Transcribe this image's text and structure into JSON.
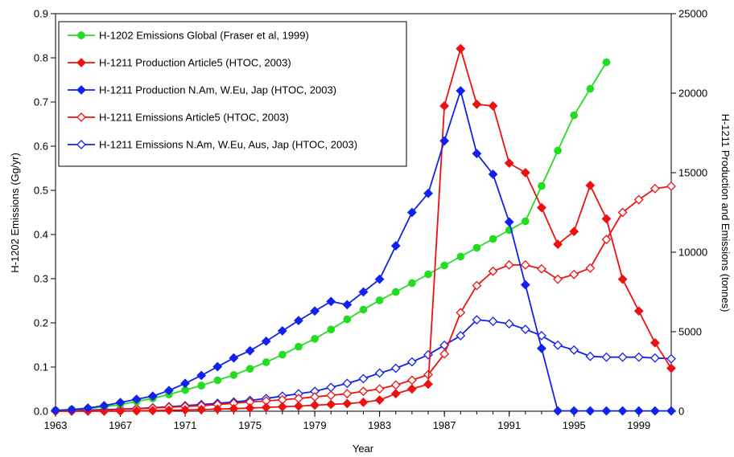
{
  "chart_data": {
    "type": "line",
    "xlabel": "Year",
    "ylabel_left": "H-1202 Emissions (Gg/yr)",
    "ylabel_right": "H-1211 Production and Emissions (tonnes)",
    "xlim": [
      1963,
      2001
    ],
    "xticks": [
      "1963",
      "1967",
      "1971",
      "1975",
      "1979",
      "1983",
      "1987",
      "1991",
      "1995",
      "1999"
    ],
    "ylim_left": [
      0,
      0.9
    ],
    "yticks_left": [
      "0.0",
      "0.1",
      "0.2",
      "0.3",
      "0.4",
      "0.5",
      "0.6",
      "0.7",
      "0.8",
      "0.9"
    ],
    "ylim_right": [
      0,
      25000
    ],
    "yticks_right": [
      "0",
      "5000",
      "10000",
      "15000",
      "20000",
      "25000"
    ],
    "grid": false,
    "legend_placement": "top-left",
    "series": [
      {
        "name": "H-1202 Emissions Global (Fraser et al, 1999)",
        "axis": "left",
        "color": "#22dd22",
        "marker": "circle",
        "filled": true,
        "x": [
          1963,
          1964,
          1965,
          1966,
          1967,
          1968,
          1969,
          1970,
          1971,
          1972,
          1973,
          1974,
          1975,
          1976,
          1977,
          1978,
          1979,
          1980,
          1981,
          1982,
          1983,
          1984,
          1985,
          1986,
          1987,
          1988,
          1989,
          1990,
          1991,
          1992,
          1993,
          1994,
          1995,
          1996,
          1997
        ],
        "y": [
          0.002,
          0.004,
          0.006,
          0.01,
          0.015,
          0.022,
          0.029,
          0.038,
          0.048,
          0.058,
          0.07,
          0.082,
          0.096,
          0.111,
          0.128,
          0.146,
          0.164,
          0.185,
          0.208,
          0.23,
          0.251,
          0.27,
          0.29,
          0.31,
          0.33,
          0.35,
          0.37,
          0.39,
          0.41,
          0.43,
          0.51,
          0.59,
          0.67,
          0.73,
          0.79
        ]
      },
      {
        "name": "H-1211 Production Article5 (HTOC, 2003)",
        "axis": "right",
        "color": "#ee1111",
        "marker": "diamond",
        "filled": true,
        "x": [
          1963,
          1964,
          1965,
          1966,
          1967,
          1968,
          1969,
          1970,
          1971,
          1972,
          1973,
          1974,
          1975,
          1976,
          1977,
          1978,
          1979,
          1980,
          1981,
          1982,
          1983,
          1984,
          1985,
          1986,
          1987,
          1988,
          1989,
          1990,
          1991,
          1992,
          1993,
          1994,
          1995,
          1996,
          1997,
          1998,
          1999,
          2000,
          2001
        ],
        "y": [
          0,
          0,
          0,
          0,
          0,
          20,
          40,
          60,
          80,
          100,
          130,
          160,
          200,
          240,
          280,
          320,
          380,
          430,
          480,
          560,
          700,
          1100,
          1400,
          1700,
          19200,
          22800,
          19300,
          19200,
          15600,
          15000,
          12800,
          10500,
          11300,
          14200,
          12100,
          8300,
          6300,
          4300,
          2700
        ]
      },
      {
        "name": "H-1211 Production N.Am, W.Eu, Jap (HTOC, 2003)",
        "axis": "right",
        "color": "#1122ee",
        "marker": "diamond",
        "filled": true,
        "x": [
          1963,
          1964,
          1965,
          1966,
          1967,
          1968,
          1969,
          1970,
          1971,
          1972,
          1973,
          1974,
          1975,
          1976,
          1977,
          1978,
          1979,
          1980,
          1981,
          1982,
          1983,
          1984,
          1985,
          1986,
          1987,
          1988,
          1989,
          1990,
          1991,
          1992,
          1993,
          1994,
          1995,
          1996,
          1997,
          1998,
          1999,
          2000,
          2001
        ],
        "y": [
          50,
          100,
          200,
          350,
          550,
          750,
          950,
          1300,
          1750,
          2250,
          2800,
          3350,
          3800,
          4400,
          5050,
          5700,
          6300,
          6900,
          6700,
          7500,
          8300,
          10400,
          12500,
          13700,
          17000,
          20150,
          16200,
          14900,
          11900,
          7950,
          3950,
          20,
          20,
          20,
          20,
          20,
          20,
          20,
          20
        ]
      },
      {
        "name": "H-1211 Emissions Article5 (HTOC, 2003)",
        "axis": "right",
        "color": "#ee1111",
        "marker": "diamond",
        "filled": false,
        "x": [
          1963,
          1964,
          1965,
          1966,
          1967,
          1968,
          1969,
          1970,
          1971,
          1972,
          1973,
          1974,
          1975,
          1976,
          1977,
          1978,
          1979,
          1980,
          1981,
          1982,
          1983,
          1984,
          1985,
          1986,
          1987,
          1988,
          1989,
          1990,
          1991,
          1992,
          1993,
          1994,
          1995,
          1996,
          1997,
          1998,
          1999,
          2000,
          2001
        ],
        "y": [
          0,
          10,
          30,
          60,
          100,
          150,
          200,
          250,
          300,
          350,
          420,
          500,
          580,
          650,
          720,
          800,
          900,
          1000,
          1100,
          1250,
          1400,
          1650,
          1950,
          2300,
          3600,
          6200,
          7900,
          8800,
          9200,
          9200,
          8950,
          8300,
          8600,
          9000,
          10800,
          12500,
          13300,
          14000,
          14150
        ]
      },
      {
        "name": "H-1211 Emissions N.Am, W.Eu, Aus, Jap (HTOC, 2003)",
        "axis": "right",
        "color": "#1122ee",
        "marker": "diamond",
        "filled": false,
        "x": [
          1963,
          1964,
          1965,
          1966,
          1967,
          1968,
          1969,
          1970,
          1971,
          1972,
          1973,
          1974,
          1975,
          1976,
          1977,
          1978,
          1979,
          1980,
          1981,
          1982,
          1983,
          1984,
          1985,
          1986,
          1987,
          1988,
          1989,
          1990,
          1991,
          1992,
          1993,
          1994,
          1995,
          1996,
          1997,
          1998,
          1999,
          2000,
          2001
        ],
        "y": [
          20,
          40,
          70,
          100,
          130,
          170,
          220,
          280,
          350,
          420,
          500,
          580,
          680,
          800,
          950,
          1100,
          1250,
          1500,
          1750,
          2050,
          2400,
          2700,
          3100,
          3550,
          4150,
          4750,
          5750,
          5650,
          5500,
          5150,
          4750,
          4150,
          3850,
          3450,
          3400,
          3400,
          3400,
          3350,
          3300
        ]
      }
    ]
  }
}
